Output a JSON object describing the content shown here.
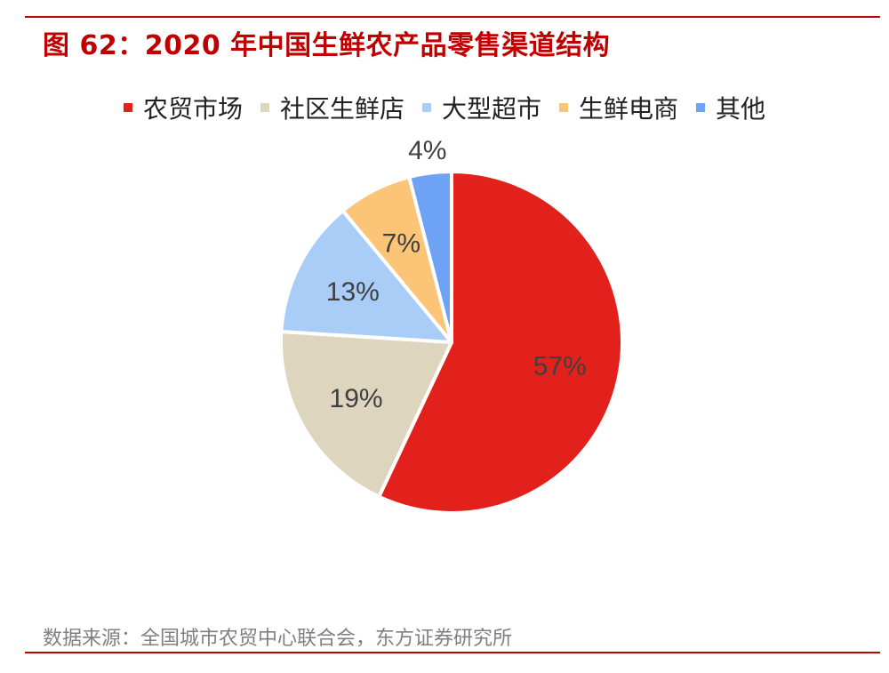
{
  "title": "图 62：2020 年中国生鲜农产品零售渠道结构",
  "source": "数据来源：全国城市农贸中心联合会，东方证券研究所",
  "colors": {
    "accent": "#c00000"
  },
  "chart_data": {
    "type": "pie",
    "title": "",
    "legend_position": "top",
    "series": [
      {
        "name": "农贸市场",
        "value": 57,
        "label": "57%",
        "color": "#e2211c"
      },
      {
        "name": "社区生鲜店",
        "value": 19,
        "label": "19%",
        "color": "#ded5bf"
      },
      {
        "name": "大型超市",
        "value": 13,
        "label": "13%",
        "color": "#a9cdf7"
      },
      {
        "name": "生鲜电商",
        "value": 7,
        "label": "7%",
        "color": "#fbc477"
      },
      {
        "name": "其他",
        "value": 4,
        "label": "4%",
        "color": "#6ea2f5"
      }
    ]
  }
}
